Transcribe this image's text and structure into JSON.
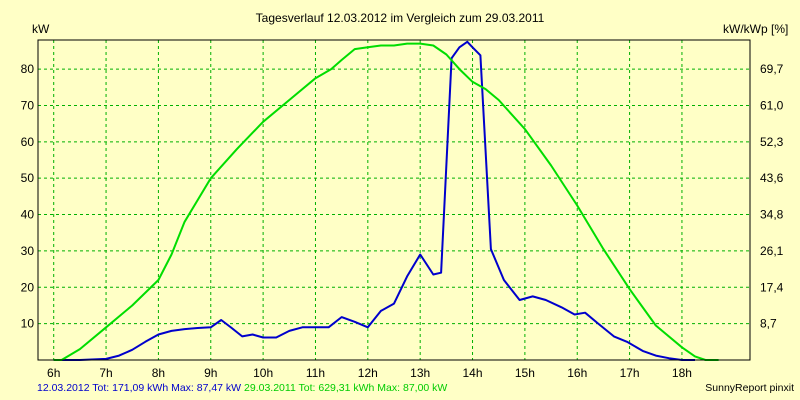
{
  "chart_data": {
    "type": "line",
    "title": "Tagesverlauf 12.03.2012 im Vergleich zum 29.03.2011",
    "ylabel_left": "kW",
    "ylabel_right": "kW/kWp [%]",
    "x_ticks": [
      "6h",
      "7h",
      "8h",
      "9h",
      "10h",
      "11h",
      "12h",
      "13h",
      "14h",
      "15h",
      "16h",
      "17h",
      "18h"
    ],
    "xlim": [
      5.7,
      19.3
    ],
    "ylim": [
      0,
      88
    ],
    "y_ticks_left": [
      10,
      20,
      30,
      40,
      50,
      60,
      70,
      80
    ],
    "y_ticks_right": [
      "8,7",
      "17,4",
      "26,1",
      "34,8",
      "43,6",
      "52,3",
      "61,0",
      "69,7"
    ],
    "grid": true,
    "series": [
      {
        "name": "12.03.2012",
        "color": "#0000cc",
        "x": [
          6.0,
          6.5,
          7.0,
          7.25,
          7.5,
          7.75,
          8.0,
          8.25,
          8.5,
          8.75,
          9.0,
          9.2,
          9.4,
          9.6,
          9.8,
          10.0,
          10.25,
          10.5,
          10.75,
          11.0,
          11.25,
          11.5,
          11.75,
          12.0,
          12.25,
          12.5,
          12.75,
          13.0,
          13.25,
          13.4,
          13.6,
          13.75,
          13.9,
          14.0,
          14.15,
          14.35,
          14.6,
          14.9,
          15.15,
          15.4,
          15.7,
          15.95,
          16.15,
          16.4,
          16.7,
          16.95,
          17.25,
          17.5,
          17.75,
          18.0,
          18.25
        ],
        "values": [
          0,
          0,
          0.3,
          1.2,
          2.8,
          5.0,
          7.0,
          8.0,
          8.5,
          8.8,
          9.0,
          11.0,
          8.8,
          6.5,
          7.0,
          6.2,
          6.2,
          8.0,
          9.0,
          9.0,
          9.0,
          11.8,
          10.5,
          9.0,
          13.5,
          15.5,
          23.0,
          29.0,
          23.5,
          24.0,
          83.0,
          86.0,
          87.5,
          86.0,
          83.8,
          30.5,
          22.0,
          16.5,
          17.5,
          16.5,
          14.5,
          12.5,
          13.0,
          10.0,
          6.5,
          5.0,
          2.5,
          1.2,
          0.5,
          0,
          0
        ]
      },
      {
        "name": "29.03.2011",
        "color": "#00dd00",
        "x": [
          6.0,
          6.15,
          6.5,
          7.0,
          7.5,
          8.0,
          8.25,
          8.5,
          8.75,
          9.0,
          9.5,
          10.0,
          10.5,
          11.0,
          11.3,
          11.5,
          11.75,
          12.0,
          12.25,
          12.5,
          12.75,
          13.0,
          13.25,
          13.5,
          13.75,
          14.0,
          14.25,
          14.5,
          15.0,
          15.5,
          16.0,
          16.5,
          17.0,
          17.5,
          18.0,
          18.25,
          18.45,
          18.7
        ],
        "values": [
          0,
          0,
          3.0,
          9.0,
          15.0,
          22.0,
          29.0,
          38.0,
          44.0,
          50.0,
          58.0,
          65.5,
          71.5,
          77.5,
          80.0,
          82.5,
          85.5,
          86.0,
          86.5,
          86.5,
          87.0,
          87.0,
          86.5,
          84.0,
          80.0,
          76.5,
          74.5,
          71.5,
          63.5,
          53.5,
          42.5,
          30.5,
          19.5,
          9.5,
          3.5,
          1.0,
          0,
          0
        ]
      }
    ]
  },
  "footer": {
    "series1_label": "12.03.2012 Tot: 171,09 kWh Max: 87,47 kW",
    "series2_label": "29.03.2011 Tot: 629,31 kWh Max: 87,00 kW",
    "credit": "SunnyReport pinxit"
  },
  "colors": {
    "background": "#ffffc6",
    "grid": "#00b000",
    "series1": "#0000cc",
    "series2": "#00cc00"
  }
}
